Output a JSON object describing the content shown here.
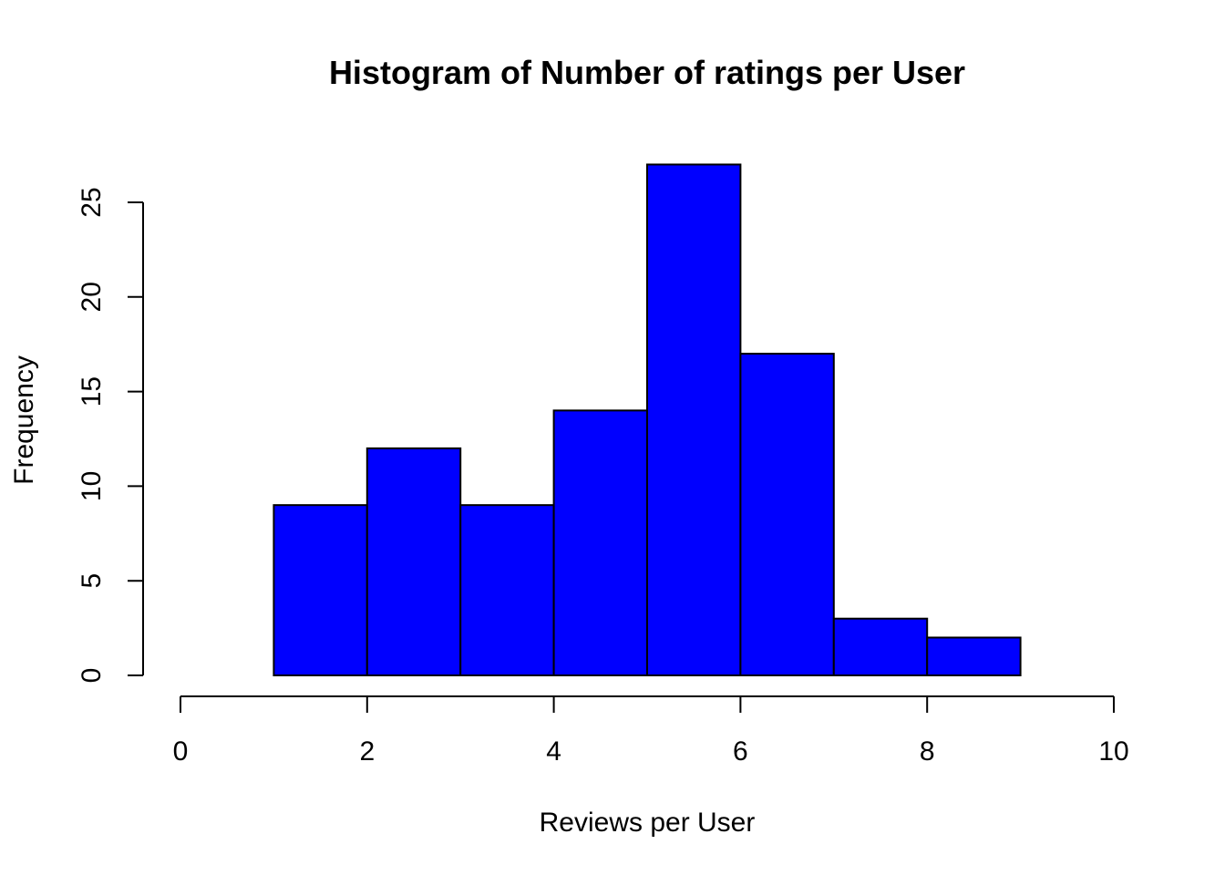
{
  "chart_data": {
    "type": "bar",
    "title": "Histogram of Number of ratings per User",
    "xlabel": "Reviews per User",
    "ylabel": "Frequency",
    "bins": [
      {
        "from": 1,
        "to": 2,
        "count": 9
      },
      {
        "from": 2,
        "to": 3,
        "count": 12
      },
      {
        "from": 3,
        "to": 4,
        "count": 9
      },
      {
        "from": 4,
        "to": 5,
        "count": 14
      },
      {
        "from": 5,
        "to": 6,
        "count": 27
      },
      {
        "from": 6,
        "to": 7,
        "count": 17
      },
      {
        "from": 7,
        "to": 8,
        "count": 3
      },
      {
        "from": 8,
        "to": 9,
        "count": 2
      }
    ],
    "xlim": [
      0,
      10
    ],
    "ylim": [
      0,
      25
    ],
    "x_ticks": [
      "0",
      "2",
      "4",
      "6",
      "8",
      "10"
    ],
    "y_ticks": [
      "0",
      "5",
      "10",
      "15",
      "20",
      "25"
    ],
    "bar_color": "#0000ff",
    "grid": false
  }
}
